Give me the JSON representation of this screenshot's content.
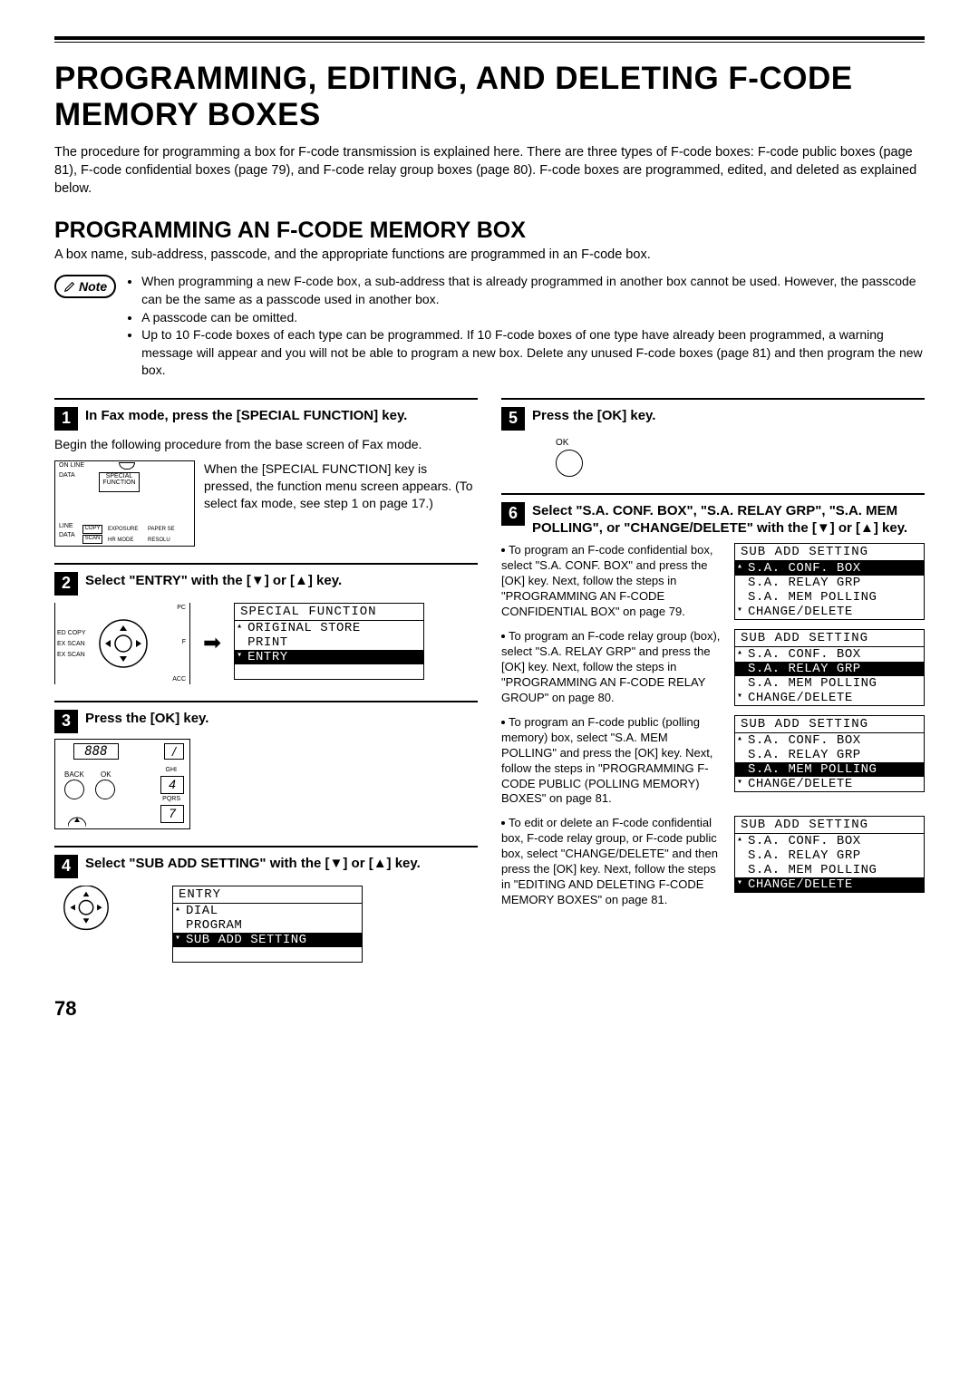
{
  "page_number": "78",
  "title": "PROGRAMMING, EDITING, AND DELETING F-CODE MEMORY BOXES",
  "intro": "The procedure for programming a box for F-code transmission is explained here. There are three types of F-code boxes: F-code public boxes (page 81), F-code confidential boxes (page 79), and F-code relay group boxes (page 80). F-code boxes are programmed, edited, and deleted as explained below.",
  "section_title": "PROGRAMMING AN F-CODE MEMORY BOX",
  "section_intro": "A box name, sub-address, passcode, and the appropriate functions are programmed in an F-code box.",
  "note_label": "Note",
  "notes": [
    "When programming a new F-code box, a sub-address that is already programmed in another box cannot be used. However, the passcode can be the same as a passcode used in another box.",
    "A passcode can be omitted.",
    "Up to 10 F-code boxes of each type can be programmed. If 10 F-code boxes of one type have already been programmed, a warning message will appear and you will not be able to program a new box. Delete any unused F-code boxes (page 81) and then program the new box."
  ],
  "step1": {
    "num": "1",
    "title": "In Fax mode, press the [SPECIAL FUNCTION] key.",
    "body": "Begin the following procedure from the base screen of Fax mode.",
    "panel_text": "When the [SPECIAL FUNCTION] key is pressed, the function menu screen appears. (To select fax mode, see step 1 on page 17.)",
    "panel_labels": {
      "online": "ON LINE",
      "data1": "DATA",
      "special": "SPECIAL FUNCTION",
      "line": "LINE",
      "data2": "DATA",
      "copy": "COPY",
      "scan": "SCAN",
      "exposure": "EXPOSURE",
      "paper": "PAPER SE",
      "hrmode": "HR MODE",
      "resolu": "RESOLU"
    }
  },
  "step2": {
    "num": "2",
    "title": "Select \"ENTRY\" with the [▼] or [▲] key.",
    "screen": {
      "header": "SPECIAL FUNCTION",
      "rows": [
        "ORIGINAL STORE",
        "PRINT",
        "ENTRY"
      ],
      "selected_index": 2
    },
    "side_labels": [
      "ED COPY",
      "EX SCAN",
      "EX SCAN"
    ],
    "right_labels": {
      "top": "PC",
      "mid": "F",
      "bot": "ACC"
    }
  },
  "step3": {
    "num": "3",
    "title": "Press the [OK] key.",
    "labels": {
      "back": "BACK",
      "ok": "OK",
      "display": "888",
      "ghi": "GHI",
      "four": "4",
      "pqrs": "PQRS",
      "seven": "7"
    }
  },
  "step4": {
    "num": "4",
    "title": "Select \"SUB ADD SETTING\" with the [▼] or [▲] key.",
    "screen": {
      "header": "ENTRY",
      "rows": [
        "DIAL",
        "PROGRAM",
        "SUB ADD SETTING"
      ],
      "selected_index": 2
    }
  },
  "step5": {
    "num": "5",
    "title": "Press the [OK] key.",
    "ok_label": "OK"
  },
  "step6": {
    "num": "6",
    "title": "Select \"S.A. CONF. BOX\", \"S.A. RELAY GRP\", \"S.A. MEM POLLING\", or \"CHANGE/DELETE\" with the [▼] or [▲] key.",
    "choice_header": "SUB ADD SETTING",
    "choice_rows": [
      "S.A. CONF. BOX",
      "S.A. RELAY GRP",
      "S.A. MEM POLLING",
      "CHANGE/DELETE"
    ],
    "choices": [
      {
        "text": "To program an F-code confidential box, select \"S.A. CONF. BOX\" and press the [OK] key. Next, follow the steps in \"PROGRAMMING AN F-CODE CONFIDENTIAL BOX\" on page 79.",
        "sel": 0
      },
      {
        "text": "To program an F-code relay group (box), select \"S.A. RELAY GRP\" and press the [OK] key. Next, follow the steps in \"PROGRAMMING AN F-CODE RELAY GROUP\" on page 80.",
        "sel": 1
      },
      {
        "text": "To program an F-code public (polling memory) box, select \"S.A. MEM POLLING\" and press the [OK] key. Next, follow the steps in \"PROGRAMMING F-CODE PUBLIC (POLLING MEMORY) BOXES\" on page 81.",
        "sel": 2
      },
      {
        "text": "To edit or delete an F-code confidential box, F-code relay group, or F-code public box, select \"CHANGE/DELETE\" and then press the [OK] key. Next, follow the steps in \"EDITING AND DELETING F-CODE MEMORY BOXES\" on page 81.",
        "sel": 3
      }
    ]
  }
}
